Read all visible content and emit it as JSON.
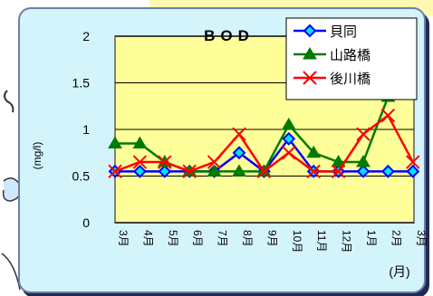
{
  "chart_data": {
    "type": "line",
    "title": "BOD",
    "ylabel": "(mg/l)",
    "xlabel": "(月)",
    "categories": [
      "3月",
      "4月",
      "5月",
      "6月",
      "7月",
      "8月",
      "9月",
      "10月",
      "11月",
      "12月",
      "1月",
      "2月",
      "3月"
    ],
    "ylim": [
      0,
      2
    ],
    "yticks": [
      "0",
      "0.5",
      "1",
      "1.5",
      "2"
    ],
    "grid": true,
    "legend_position": "top-right",
    "series": [
      {
        "name": "貝同",
        "color": "#0000ff",
        "marker": "diamond",
        "values": [
          0.55,
          0.55,
          0.55,
          0.55,
          0.55,
          0.75,
          0.55,
          0.9,
          0.55,
          0.55,
          0.55,
          0.55,
          0.55
        ]
      },
      {
        "name": "山路橋",
        "color": "#007a00",
        "marker": "triangle",
        "values": [
          0.85,
          0.85,
          0.65,
          0.55,
          0.55,
          0.55,
          0.55,
          1.05,
          0.75,
          0.65,
          0.65,
          1.35,
          null
        ]
      },
      {
        "name": "後川橋",
        "color": "#ff0000",
        "marker": "x",
        "values": [
          0.55,
          0.65,
          0.65,
          0.55,
          0.65,
          0.95,
          0.55,
          0.75,
          0.55,
          0.55,
          0.95,
          1.15,
          0.65
        ]
      }
    ]
  }
}
